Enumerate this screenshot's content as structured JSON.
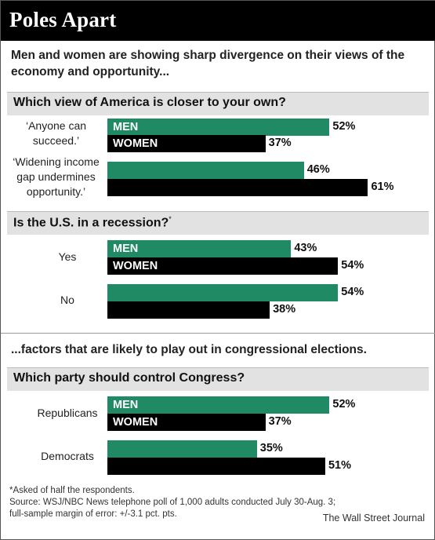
{
  "title": "Poles Apart",
  "intro": "Men and women are showing sharp divergence on their views of the economy and opportunity...",
  "interlude": "...factors that are likely to play out in congressional elections.",
  "colors": {
    "men": "#1f8a63",
    "women": "#000000",
    "section_bg": "#e2e2e2"
  },
  "chart_data": [
    {
      "type": "bar",
      "title": "Which view of America is closer to your own?",
      "categories": [
        "‘Anyone can succeed.’",
        "‘Widening income gap undermines opportunity.’"
      ],
      "series": [
        {
          "name": "MEN",
          "values": [
            52,
            46
          ]
        },
        {
          "name": "WOMEN",
          "values": [
            37,
            61
          ]
        }
      ],
      "value_labels": [
        [
          "52%",
          "37%"
        ],
        [
          "46%",
          "61%"
        ]
      ]
    },
    {
      "type": "bar",
      "title": "Is the U.S. in a recession?",
      "title_mark": "*",
      "categories": [
        "Yes",
        "No"
      ],
      "series": [
        {
          "name": "MEN",
          "values": [
            43,
            54
          ]
        },
        {
          "name": "WOMEN",
          "values": [
            54,
            38
          ]
        }
      ],
      "value_labels": [
        [
          "43%",
          "54%"
        ],
        [
          "54%",
          "38%"
        ]
      ]
    },
    {
      "type": "bar",
      "title": "Which party should control Congress?",
      "categories": [
        "Republicans",
        "Democrats"
      ],
      "series": [
        {
          "name": "MEN",
          "values": [
            52,
            35
          ]
        },
        {
          "name": "WOMEN",
          "values": [
            37,
            51
          ]
        }
      ],
      "value_labels": [
        [
          "52%",
          "37%"
        ],
        [
          "35%",
          "51%"
        ]
      ]
    }
  ],
  "footnote": "*Asked of half the respondents.",
  "source": "Source: WSJ/NBC News telephone poll of 1,000 adults conducted July 30-Aug. 3; full-sample margin of error: +/-3.1 pct. pts.",
  "credit": "The Wall Street Journal"
}
